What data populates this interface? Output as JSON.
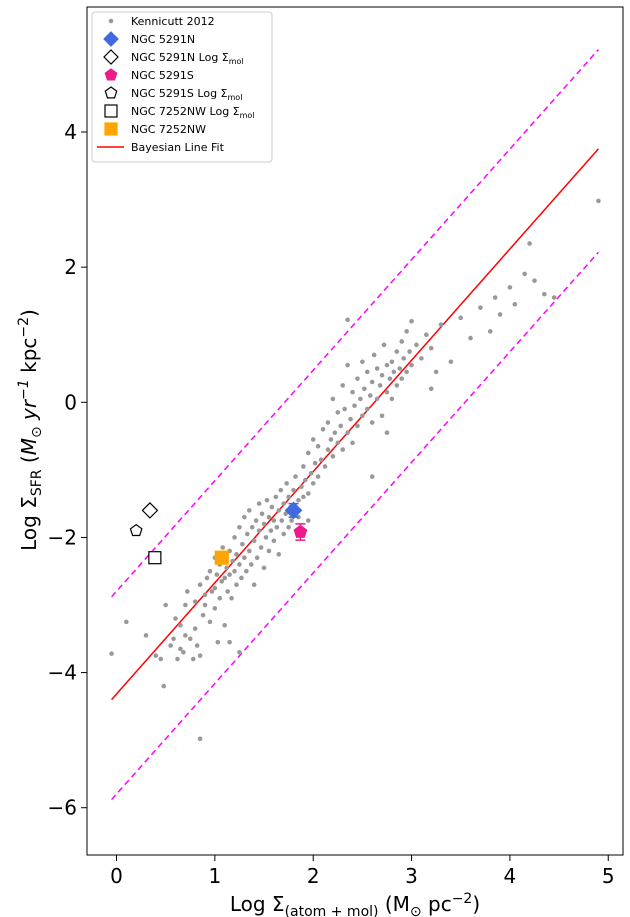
{
  "chart_data": {
    "type": "scatter",
    "xlabel": "Log Σ(atom+mol) (M⊙ pc−2)",
    "ylabel": "Log ΣSFR (M⊙ yr−1 kpc−2)",
    "xlim": [
      -0.3,
      5.15
    ],
    "ylim": [
      -6.7,
      5.85
    ],
    "xticks": [
      0,
      1,
      2,
      3,
      4,
      5
    ],
    "yticks": [
      -6,
      -4,
      -2,
      0,
      2,
      4
    ],
    "xtick_labels": [
      "0",
      "1",
      "2",
      "3",
      "4",
      "5"
    ],
    "ytick_labels": [
      "−6",
      "−4",
      "−2",
      "0",
      "2",
      "4"
    ],
    "legend_position": "top-left",
    "legend": [
      {
        "label": "Kennicutt 2012",
        "marker": "dot",
        "color": "#999999"
      },
      {
        "label": "NGC 5291N",
        "marker": "diamond",
        "color": "#4169e1"
      },
      {
        "label": "NGC 5291N Log Σmol",
        "marker": "diamond-open",
        "color": "#000000"
      },
      {
        "label": "NGC 5291S",
        "marker": "pentagon",
        "color": "#ee1a8a"
      },
      {
        "label": "NGC 5291S Log Σmol",
        "marker": "pentagon-open",
        "color": "#000000"
      },
      {
        "label": "NGC 7252NW Log Σmol",
        "marker": "square-open",
        "color": "#000000"
      },
      {
        "label": "NGC 7252NW",
        "marker": "square",
        "color": "#ffa500"
      },
      {
        "label": "Bayesian Line Fit",
        "marker": "line",
        "color": "#ff0000"
      }
    ],
    "fit_line": {
      "x": [
        -0.05,
        4.9
      ],
      "y": [
        -4.4,
        3.75
      ],
      "color": "#ff0000"
    },
    "upper_bound": {
      "x": [
        -0.05,
        4.9
      ],
      "y": [
        -2.88,
        5.22
      ],
      "color": "#ff00ff"
    },
    "lower_bound": {
      "x": [
        -0.05,
        4.9
      ],
      "y": [
        -5.88,
        2.22
      ],
      "color": "#ff00ff"
    },
    "kennicutt_points": [
      [
        -0.05,
        -3.72
      ],
      [
        0.1,
        -3.25
      ],
      [
        0.3,
        -3.45
      ],
      [
        0.4,
        -3.75
      ],
      [
        0.45,
        -3.8
      ],
      [
        0.48,
        -4.2
      ],
      [
        0.5,
        -3.0
      ],
      [
        0.55,
        -3.6
      ],
      [
        0.58,
        -3.5
      ],
      [
        0.6,
        -3.2
      ],
      [
        0.62,
        -3.8
      ],
      [
        0.65,
        -3.3
      ],
      [
        0.65,
        -3.65
      ],
      [
        0.68,
        -3.7
      ],
      [
        0.7,
        -3.45
      ],
      [
        0.7,
        -3.0
      ],
      [
        0.72,
        -2.8
      ],
      [
        0.75,
        -3.5
      ],
      [
        0.78,
        -3.8
      ],
      [
        0.8,
        -3.35
      ],
      [
        0.8,
        -2.95
      ],
      [
        0.82,
        -3.6
      ],
      [
        0.85,
        -3.75
      ],
      [
        0.85,
        -2.7
      ],
      [
        0.88,
        -3.15
      ],
      [
        0.9,
        -3.0
      ],
      [
        0.9,
        -2.85
      ],
      [
        0.92,
        -2.6
      ],
      [
        0.95,
        -3.25
      ],
      [
        0.95,
        -2.5
      ],
      [
        0.97,
        -2.8
      ],
      [
        1.0,
        -2.75
      ],
      [
        1.0,
        -3.05
      ],
      [
        1.0,
        -2.3
      ],
      [
        1.02,
        -2.55
      ],
      [
        1.03,
        -3.55
      ],
      [
        1.05,
        -2.9
      ],
      [
        1.05,
        -2.4
      ],
      [
        1.07,
        -2.65
      ],
      [
        1.08,
        -2.15
      ],
      [
        1.1,
        -2.6
      ],
      [
        1.1,
        -3.3
      ],
      [
        1.12,
        -2.45
      ],
      [
        1.13,
        -2.8
      ],
      [
        1.15,
        -2.2
      ],
      [
        1.15,
        -2.55
      ],
      [
        1.17,
        -2.9
      ],
      [
        1.18,
        -2.35
      ],
      [
        1.2,
        -2.5
      ],
      [
        1.2,
        -2.0
      ],
      [
        1.22,
        -2.7
      ],
      [
        1.22,
        -2.25
      ],
      [
        1.25,
        -2.4
      ],
      [
        1.25,
        -1.85
      ],
      [
        1.27,
        -2.6
      ],
      [
        1.28,
        -2.1
      ],
      [
        1.3,
        -2.3
      ],
      [
        1.3,
        -1.7
      ],
      [
        1.32,
        -2.5
      ],
      [
        1.33,
        -1.95
      ],
      [
        1.35,
        -2.2
      ],
      [
        1.35,
        -1.6
      ],
      [
        1.37,
        -2.4
      ],
      [
        1.38,
        -1.85
      ],
      [
        1.4,
        -2.05
      ],
      [
        1.4,
        -2.7
      ],
      [
        1.42,
        -1.75
      ],
      [
        1.43,
        -2.3
      ],
      [
        1.45,
        -1.9
      ],
      [
        1.45,
        -1.5
      ],
      [
        1.47,
        -2.15
      ],
      [
        1.48,
        -1.65
      ],
      [
        1.5,
        -1.8
      ],
      [
        1.5,
        -2.45
      ],
      [
        1.52,
        -2.0
      ],
      [
        1.53,
        -1.45
      ],
      [
        1.55,
        -1.7
      ],
      [
        1.55,
        -2.2
      ],
      [
        1.57,
        -1.9
      ],
      [
        1.58,
        -1.55
      ],
      [
        1.6,
        -1.75
      ],
      [
        1.6,
        -2.05
      ],
      [
        1.62,
        -1.4
      ],
      [
        1.63,
        -1.85
      ],
      [
        1.65,
        -1.6
      ],
      [
        1.65,
        -2.25
      ],
      [
        1.67,
        -1.3
      ],
      [
        1.68,
        -1.75
      ],
      [
        1.7,
        -1.95
      ],
      [
        1.7,
        -1.5
      ],
      [
        1.72,
        -1.65
      ],
      [
        1.73,
        -1.2
      ],
      [
        1.75,
        -1.85
      ],
      [
        1.75,
        -1.4
      ],
      [
        1.77,
        -1.55
      ],
      [
        1.78,
        -1.75
      ],
      [
        1.8,
        -1.3
      ],
      [
        1.8,
        -1.6
      ],
      [
        1.82,
        -1.1
      ],
      [
        1.85,
        -1.45
      ],
      [
        1.85,
        -1.7
      ],
      [
        1.88,
        -1.25
      ],
      [
        1.9,
        -1.4
      ],
      [
        1.9,
        -0.95
      ],
      [
        1.92,
        -1.15
      ],
      [
        1.95,
        -1.35
      ],
      [
        1.95,
        -0.75
      ],
      [
        1.98,
        -1.05
      ],
      [
        2.0,
        -1.2
      ],
      [
        2.0,
        -0.55
      ],
      [
        2.02,
        -0.9
      ],
      [
        2.05,
        -1.1
      ],
      [
        2.05,
        -0.65
      ],
      [
        2.08,
        -0.85
      ],
      [
        2.1,
        -0.4
      ],
      [
        2.12,
        -0.95
      ],
      [
        2.15,
        -0.7
      ],
      [
        2.15,
        -0.3
      ],
      [
        2.18,
        -0.55
      ],
      [
        2.2,
        -0.8
      ],
      [
        2.2,
        0.05
      ],
      [
        2.22,
        -0.45
      ],
      [
        2.25,
        -0.6
      ],
      [
        2.25,
        -0.15
      ],
      [
        2.28,
        -0.35
      ],
      [
        2.3,
        -0.7
      ],
      [
        2.3,
        0.25
      ],
      [
        2.32,
        -0.1
      ],
      [
        2.35,
        -0.45
      ],
      [
        2.35,
        0.55
      ],
      [
        2.38,
        -0.25
      ],
      [
        2.4,
        0.15
      ],
      [
        2.4,
        -0.6
      ],
      [
        2.42,
        -0.05
      ],
      [
        2.45,
        0.35
      ],
      [
        2.45,
        -0.35
      ],
      [
        2.48,
        0.05
      ],
      [
        2.5,
        -0.2
      ],
      [
        2.5,
        0.6
      ],
      [
        2.52,
        0.2
      ],
      [
        2.55,
        -0.1
      ],
      [
        2.55,
        0.45
      ],
      [
        2.58,
        0.1
      ],
      [
        2.6,
        0.3
      ],
      [
        2.6,
        -0.3
      ],
      [
        2.62,
        0.7
      ],
      [
        2.65,
        0.05
      ],
      [
        2.65,
        0.5
      ],
      [
        2.68,
        0.25
      ],
      [
        2.7,
        0.4
      ],
      [
        2.7,
        -0.2
      ],
      [
        2.72,
        0.85
      ],
      [
        2.75,
        0.15
      ],
      [
        2.75,
        0.55
      ],
      [
        2.78,
        0.35
      ],
      [
        2.8,
        0.6
      ],
      [
        2.8,
        0.05
      ],
      [
        2.82,
        0.45
      ],
      [
        2.85,
        0.75
      ],
      [
        2.85,
        0.25
      ],
      [
        2.88,
        0.5
      ],
      [
        2.9,
        0.9
      ],
      [
        2.9,
        0.35
      ],
      [
        2.92,
        0.65
      ],
      [
        2.95,
        0.45
      ],
      [
        2.95,
        1.05
      ],
      [
        2.98,
        0.75
      ],
      [
        3.0,
        0.55
      ],
      [
        3.0,
        1.2
      ],
      [
        3.05,
        0.85
      ],
      [
        3.1,
        0.65
      ],
      [
        3.15,
        1.0
      ],
      [
        3.2,
        0.8
      ],
      [
        3.25,
        0.45
      ],
      [
        3.3,
        1.15
      ],
      [
        3.4,
        0.6
      ],
      [
        3.5,
        1.25
      ],
      [
        3.6,
        0.95
      ],
      [
        3.7,
        1.4
      ],
      [
        3.8,
        1.05
      ],
      [
        3.85,
        1.55
      ],
      [
        3.9,
        1.3
      ],
      [
        4.0,
        1.7
      ],
      [
        4.05,
        1.45
      ],
      [
        4.15,
        1.9
      ],
      [
        4.2,
        2.35
      ],
      [
        4.25,
        1.8
      ],
      [
        4.35,
        1.6
      ],
      [
        4.45,
        1.55
      ],
      [
        4.9,
        2.98
      ],
      [
        0.85,
        -4.98
      ],
      [
        1.25,
        -3.7
      ],
      [
        2.35,
        1.22
      ],
      [
        1.95,
        -1.75
      ],
      [
        1.15,
        -3.55
      ],
      [
        2.6,
        -1.1
      ],
      [
        2.75,
        -0.45
      ],
      [
        3.2,
        0.2
      ]
    ],
    "ngc5291n": {
      "x": 1.8,
      "y": -1.6,
      "err": 0.1,
      "color": "#4169e1"
    },
    "ngc5291n_mol": {
      "x": 0.34,
      "y": -1.6
    },
    "ngc5291s": {
      "x": 1.87,
      "y": -1.92,
      "err": 0.12,
      "color": "#ee1a8a"
    },
    "ngc5291s_mol": {
      "x": 0.2,
      "y": -1.9
    },
    "ngc7252nw": {
      "x": 1.07,
      "y": -2.3,
      "color": "#ffa500"
    },
    "ngc7252nw_mol": {
      "x": 0.39,
      "y": -2.3
    }
  }
}
